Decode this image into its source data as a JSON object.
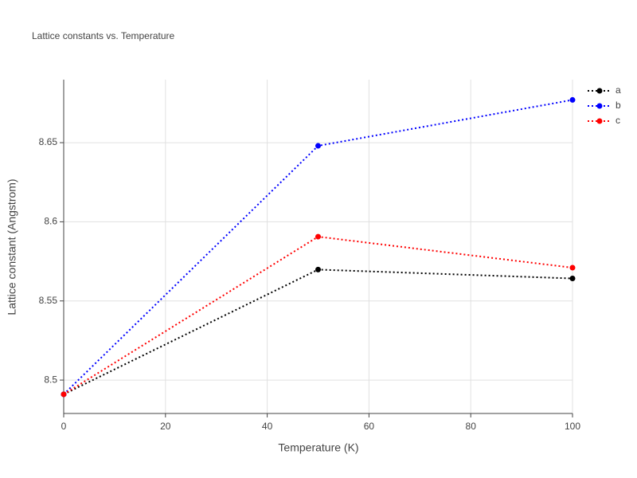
{
  "chart_data": {
    "type": "line",
    "title": "Lattice constants vs. Temperature",
    "x_label": "Temperature (K)",
    "y_label": "Lattice constant (Angstrom)",
    "x": [
      0,
      50,
      100
    ],
    "series": [
      {
        "name": "a",
        "color": "#000000",
        "values": [
          8.491,
          8.5698,
          8.5642
        ]
      },
      {
        "name": "b",
        "color": "#0000ff",
        "values": [
          8.491,
          8.648,
          8.677
        ]
      },
      {
        "name": "c",
        "color": "#ff0000",
        "values": [
          8.491,
          8.5906,
          8.571
        ]
      }
    ],
    "xlim": [
      0,
      100
    ],
    "xticks": [
      0,
      20,
      40,
      60,
      80,
      100
    ],
    "ylim": [
      8.4789,
      8.6898
    ],
    "yticks": [
      8.5,
      8.55,
      8.6,
      8.65
    ],
    "grid": true,
    "legend": "top-right"
  }
}
